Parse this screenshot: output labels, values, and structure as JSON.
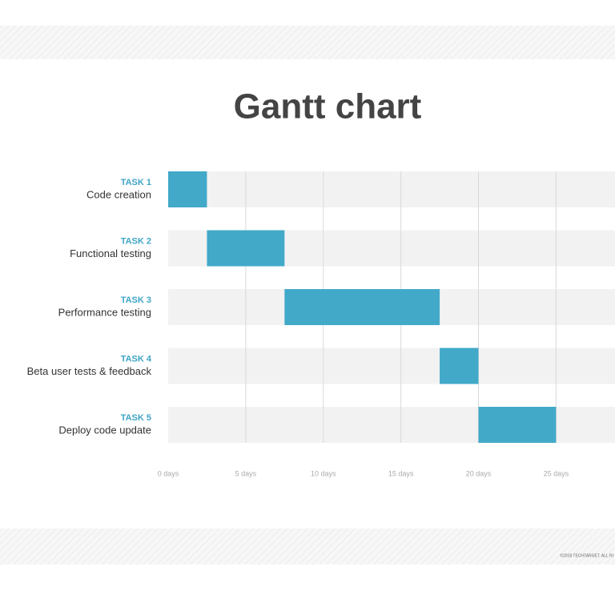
{
  "chart_data": {
    "type": "gantt",
    "title": "Gantt chart",
    "task_ids": [
      "TASK 1",
      "TASK 2",
      "TASK 3",
      "TASK 4",
      "TASK 5"
    ],
    "categories": [
      "Code creation",
      "Functional testing",
      "Performance testing",
      "Beta user tests & feedback",
      "Deploy code update"
    ],
    "start": [
      0,
      2.5,
      7.5,
      17.5,
      20
    ],
    "end": [
      2.5,
      7.5,
      17.5,
      20,
      25
    ],
    "color": "#42a9c9",
    "xlim": [
      0,
      28.8
    ],
    "xticks": [
      {
        "value": 0,
        "label": "0 days"
      },
      {
        "value": 5,
        "label": "5 days"
      },
      {
        "value": 10,
        "label": "10 days"
      },
      {
        "value": 15,
        "label": "15 days"
      },
      {
        "value": 20,
        "label": "20 days"
      },
      {
        "value": 25,
        "label": "25 days"
      }
    ],
    "grid": true,
    "footer": "©2018 TECHTARGET. ALL RI"
  }
}
